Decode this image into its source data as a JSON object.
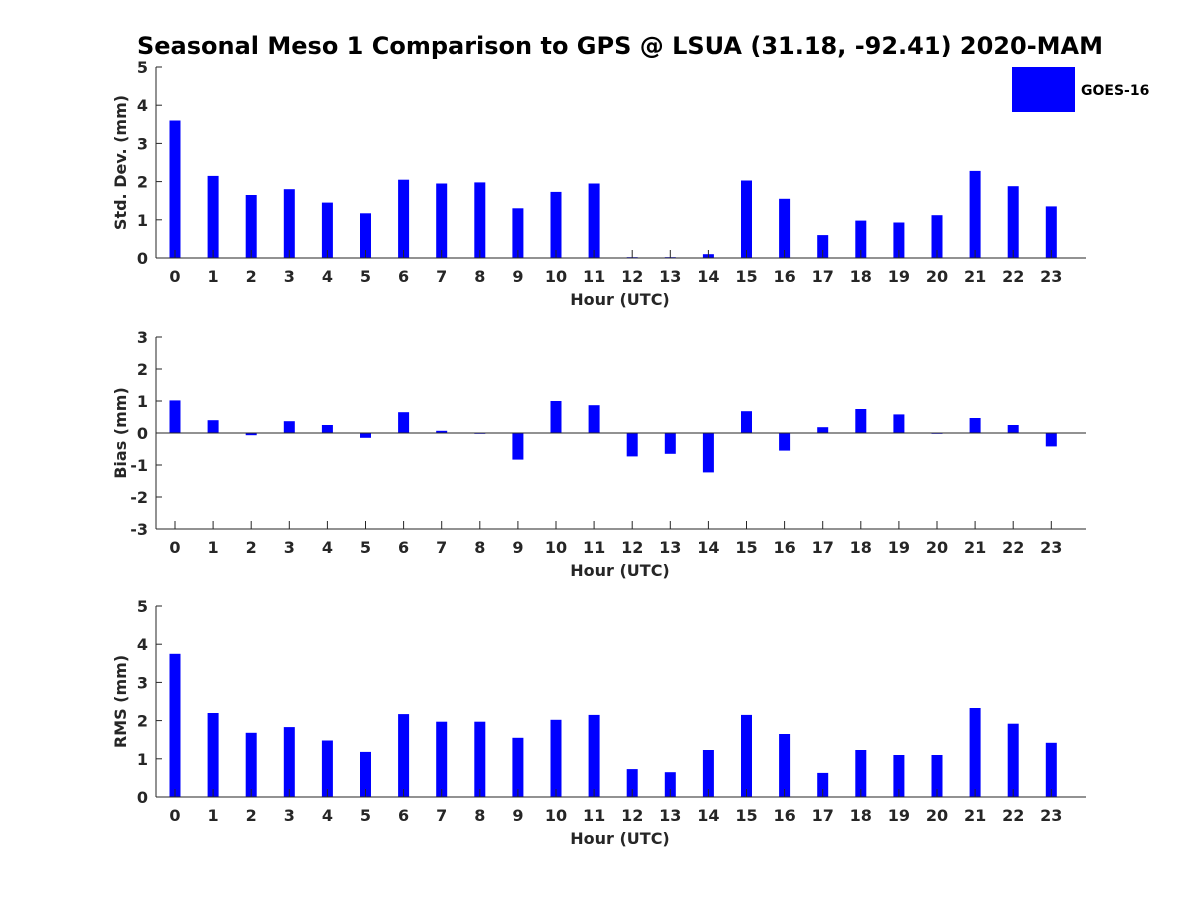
{
  "figure_title": "Seasonal Meso 1 Comparison to GPS @ LSUA (31.18, -92.41) 2020-MAM",
  "legend": {
    "label": "GOES-16",
    "color": "#0000ff"
  },
  "chart_data": [
    {
      "type": "bar",
      "title": "Seasonal Meso 1 Comparison to GPS @ LSUA (31.18, -92.41) 2020-MAM",
      "xlabel": "Hour (UTC)",
      "ylabel": "Std. Dev. (mm)",
      "ylim": [
        0,
        5
      ],
      "yticks": [
        0,
        1,
        2,
        3,
        4,
        5
      ],
      "categories": [
        "0",
        "1",
        "2",
        "3",
        "4",
        "5",
        "6",
        "7",
        "8",
        "9",
        "10",
        "11",
        "12",
        "13",
        "14",
        "15",
        "16",
        "17",
        "18",
        "19",
        "20",
        "21",
        "22",
        "23"
      ],
      "series": [
        {
          "name": "GOES-16",
          "color": "#0000ff",
          "values": [
            3.6,
            2.15,
            1.65,
            1.8,
            1.45,
            1.17,
            2.05,
            1.95,
            1.98,
            1.3,
            1.73,
            1.95,
            0.02,
            0.02,
            0.1,
            2.03,
            1.55,
            0.6,
            0.98,
            0.93,
            1.12,
            2.28,
            1.88,
            1.35
          ]
        }
      ]
    },
    {
      "type": "bar",
      "xlabel": "Hour (UTC)",
      "ylabel": "Bias (mm)",
      "ylim": [
        -3,
        3
      ],
      "yticks": [
        -3,
        -2,
        -1,
        0,
        1,
        2,
        3
      ],
      "categories": [
        "0",
        "1",
        "2",
        "3",
        "4",
        "5",
        "6",
        "7",
        "8",
        "9",
        "10",
        "11",
        "12",
        "13",
        "14",
        "15",
        "16",
        "17",
        "18",
        "19",
        "20",
        "21",
        "22",
        "23"
      ],
      "series": [
        {
          "name": "GOES-16",
          "color": "#0000ff",
          "values": [
            1.02,
            0.4,
            -0.07,
            0.37,
            0.25,
            -0.15,
            0.65,
            0.07,
            0.0,
            -0.83,
            1.0,
            0.87,
            -0.73,
            -0.65,
            -1.23,
            0.68,
            -0.55,
            0.18,
            0.75,
            0.58,
            0.0,
            0.47,
            0.25,
            -0.42
          ]
        }
      ]
    },
    {
      "type": "bar",
      "xlabel": "Hour (UTC)",
      "ylabel": "RMS (mm)",
      "ylim": [
        0,
        5
      ],
      "yticks": [
        0,
        1,
        2,
        3,
        4,
        5
      ],
      "categories": [
        "0",
        "1",
        "2",
        "3",
        "4",
        "5",
        "6",
        "7",
        "8",
        "9",
        "10",
        "11",
        "12",
        "13",
        "14",
        "15",
        "16",
        "17",
        "18",
        "19",
        "20",
        "21",
        "22",
        "23"
      ],
      "series": [
        {
          "name": "GOES-16",
          "color": "#0000ff",
          "values": [
            3.75,
            2.2,
            1.68,
            1.83,
            1.48,
            1.18,
            2.17,
            1.97,
            1.97,
            1.55,
            2.02,
            2.15,
            0.73,
            0.65,
            1.23,
            2.15,
            1.65,
            0.63,
            1.23,
            1.1,
            1.1,
            2.33,
            1.92,
            1.42
          ]
        }
      ]
    }
  ]
}
